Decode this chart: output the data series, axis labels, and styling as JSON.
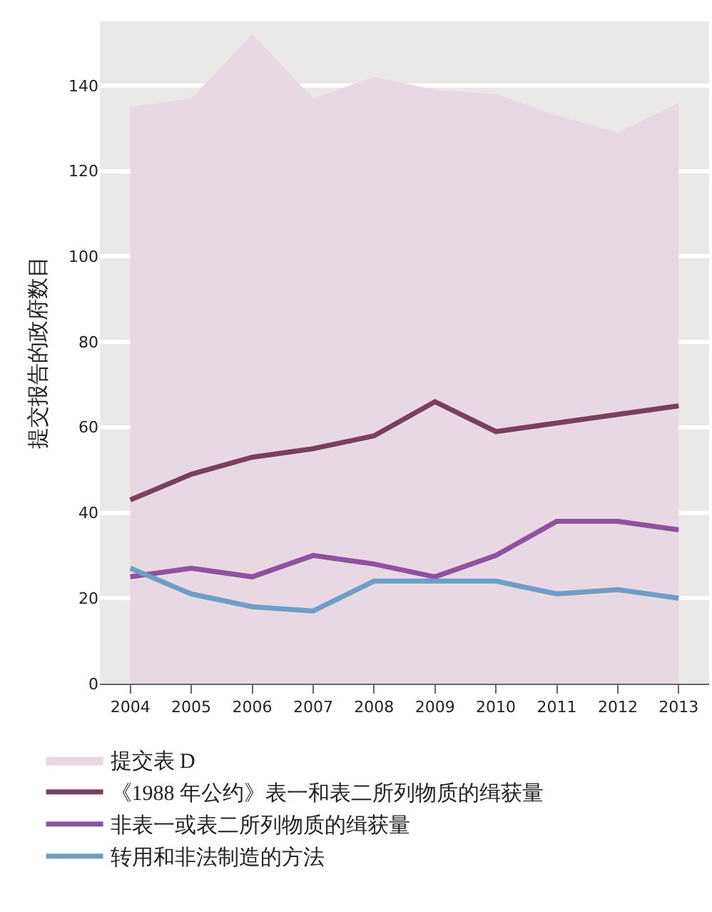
{
  "chart_data": {
    "type": "line",
    "ylabel": "提交报告的政府数目",
    "x": [
      2004,
      2005,
      2006,
      2007,
      2008,
      2009,
      2010,
      2011,
      2012,
      2013
    ],
    "xlim": [
      2003.5,
      2013.5
    ],
    "xticks": [
      2004,
      2005,
      2006,
      2007,
      2008,
      2009,
      2010,
      2011,
      2012,
      2013
    ],
    "ylim": [
      0,
      155
    ],
    "yticks": [
      0,
      20,
      40,
      60,
      80,
      100,
      120,
      140
    ],
    "grid": "y",
    "legend": "bottom",
    "series": [
      {
        "name": "提交表 D",
        "type": "area",
        "color": "#e8d8e3",
        "values": [
          135,
          137,
          152,
          137,
          142,
          139,
          138,
          133,
          129,
          136
        ]
      },
      {
        "name": "《1988 年公约》表一和表二所列物质的缉获量",
        "color": "#7b3f5e",
        "values": [
          43,
          49,
          53,
          55,
          58,
          66,
          59,
          61,
          63,
          65
        ]
      },
      {
        "name": "非表一或表二所列物质的缉获量",
        "color": "#8e52a0",
        "values": [
          25,
          27,
          25,
          30,
          28,
          25,
          30,
          38,
          38,
          36
        ]
      },
      {
        "name": "转用和非法制造的方法",
        "color": "#6e9ec4",
        "values": [
          27,
          21,
          18,
          17,
          24,
          24,
          24,
          21,
          22,
          20
        ]
      }
    ]
  }
}
